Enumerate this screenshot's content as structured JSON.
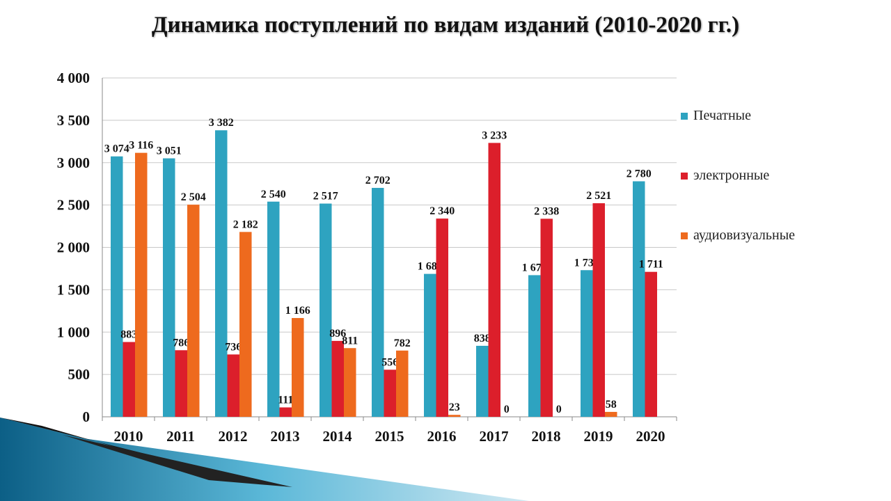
{
  "colors": {
    "pechatnye": "#2ea3c0",
    "elektronnye": "#dc1f2b",
    "audio": "#ee6a1e"
  },
  "chart_data": {
    "type": "bar",
    "title": "Динамика поступлений по видам изданий (2010-2020 гг.)",
    "categories": [
      "2010",
      "2011",
      "2012",
      "2013",
      "2014",
      "2015",
      "2016",
      "2017",
      "2018",
      "2019",
      "2020"
    ],
    "series": [
      {
        "name": "Печатные",
        "values": [
          3074,
          3051,
          3382,
          2540,
          2517,
          2702,
          1687,
          838,
          1672,
          1731,
          2780
        ],
        "labels": [
          "3 074",
          "3 051",
          "3 382",
          "2 540",
          "2 517",
          "2 702",
          "1 687",
          "838",
          "1 672",
          "1 731",
          "2 780"
        ]
      },
      {
        "name": "электронные",
        "values": [
          883,
          786,
          736,
          111,
          896,
          556,
          2340,
          3233,
          2338,
          2521,
          1711
        ],
        "labels": [
          "883",
          "786",
          "736",
          "111",
          "896",
          "556",
          "2 340",
          "3 233",
          "2 338",
          "2 521",
          "1 711"
        ]
      },
      {
        "name": "аудиовизуальные",
        "values": [
          3116,
          2504,
          2182,
          1166,
          811,
          782,
          23,
          0,
          0,
          58,
          null
        ],
        "labels": [
          "3 116",
          "2 504",
          "2 182",
          "1 166",
          "811",
          "782",
          "23",
          "0",
          "0",
          "58",
          null
        ]
      }
    ],
    "ylim": [
      0,
      4000
    ],
    "yticks": [
      0,
      500,
      1000,
      1500,
      2000,
      2500,
      3000,
      3500,
      4000
    ],
    "ytick_labels": [
      "0",
      "500",
      "1 000",
      "1 500",
      "2 000",
      "2 500",
      "3 000",
      "3 500",
      "4 000"
    ],
    "grid": true,
    "legend": "right"
  }
}
